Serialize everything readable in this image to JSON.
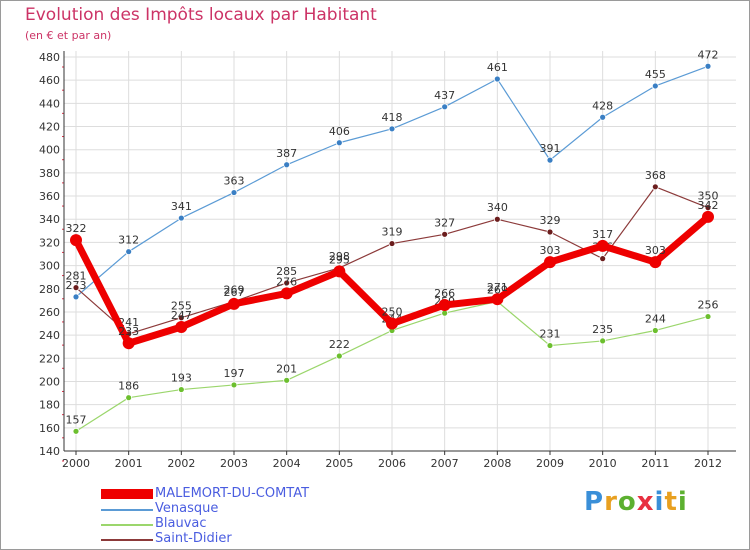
{
  "title": "Evolution des Impôts locaux par Habitant",
  "subtitle": "(en € et par an)",
  "watermark": "Proxiti",
  "watermark_colors": [
    "#3a8fd8",
    "#e8a020",
    "#5cb030",
    "#e83040",
    "#3a8fd8",
    "#e8a020",
    "#5cb030"
  ],
  "colors": {
    "axis": "#333333",
    "grid": "#dddddd",
    "label": "#333333",
    "tick_red": "#e0324a"
  },
  "chart_data": {
    "type": "line",
    "title": "Evolution des Impôts locaux par Habitant",
    "subtitle": "(en € et par an)",
    "xlabel": "",
    "ylabel": "",
    "categories": [
      "2000",
      "2001",
      "2002",
      "2003",
      "2004",
      "2005",
      "2006",
      "2007",
      "2008",
      "2009",
      "2010",
      "2011",
      "2012"
    ],
    "ylim": [
      140,
      480
    ],
    "yticks": [
      "140",
      "160",
      "180",
      "200",
      "220",
      "240",
      "260",
      "280",
      "300",
      "320",
      "340",
      "360",
      "380",
      "400",
      "420",
      "440",
      "460",
      "480"
    ],
    "grid": true,
    "legend_position": "bottom-left",
    "series": [
      {
        "name": "Venasque",
        "color": "#5b9bd5",
        "marker": "#3a7fc4",
        "values": [
          273,
          312,
          341,
          363,
          387,
          406,
          418,
          437,
          461,
          391,
          428,
          455,
          472
        ],
        "labels": [
          "273",
          "312",
          "341",
          "363",
          "387",
          "406",
          "418",
          "437",
          "461",
          "391",
          "428",
          "455",
          "472"
        ]
      },
      {
        "name": "Blauvac",
        "color": "#9bd66c",
        "marker": "#6cbf2e",
        "values": [
          157,
          186,
          193,
          197,
          201,
          222,
          244,
          259,
          269,
          231,
          235,
          244,
          256
        ],
        "labels": [
          "157",
          "186",
          "193",
          "197",
          "201",
          "222",
          "244",
          "259",
          "269",
          "231",
          "235",
          "244",
          "256"
        ]
      },
      {
        "name": "Saint-Didier",
        "color": "#8c3a3a",
        "marker": "#6b1d1d",
        "values": [
          281,
          241,
          255,
          269,
          285,
          298,
          319,
          327,
          340,
          329,
          306,
          368,
          350
        ],
        "labels": [
          "281",
          "241",
          "255",
          "269",
          "285",
          "298",
          "319",
          "327",
          "340",
          "329",
          "306",
          "368",
          "350"
        ]
      },
      {
        "name": "MALEMORT-DU-COMTAT",
        "color": "#ee0000",
        "marker": "#ee0000",
        "values": [
          322,
          233,
          247,
          267,
          276,
          295,
          250,
          266,
          271,
          303,
          317,
          303,
          342
        ],
        "labels": [
          "322",
          "233",
          "247",
          "267",
          "276",
          "295",
          "250",
          "266",
          "271",
          "303",
          "317",
          "303",
          "342"
        ]
      }
    ],
    "legend": [
      "MALEMORT-DU-COMTAT",
      "Venasque",
      "Blauvac",
      "Saint-Didier"
    ]
  }
}
